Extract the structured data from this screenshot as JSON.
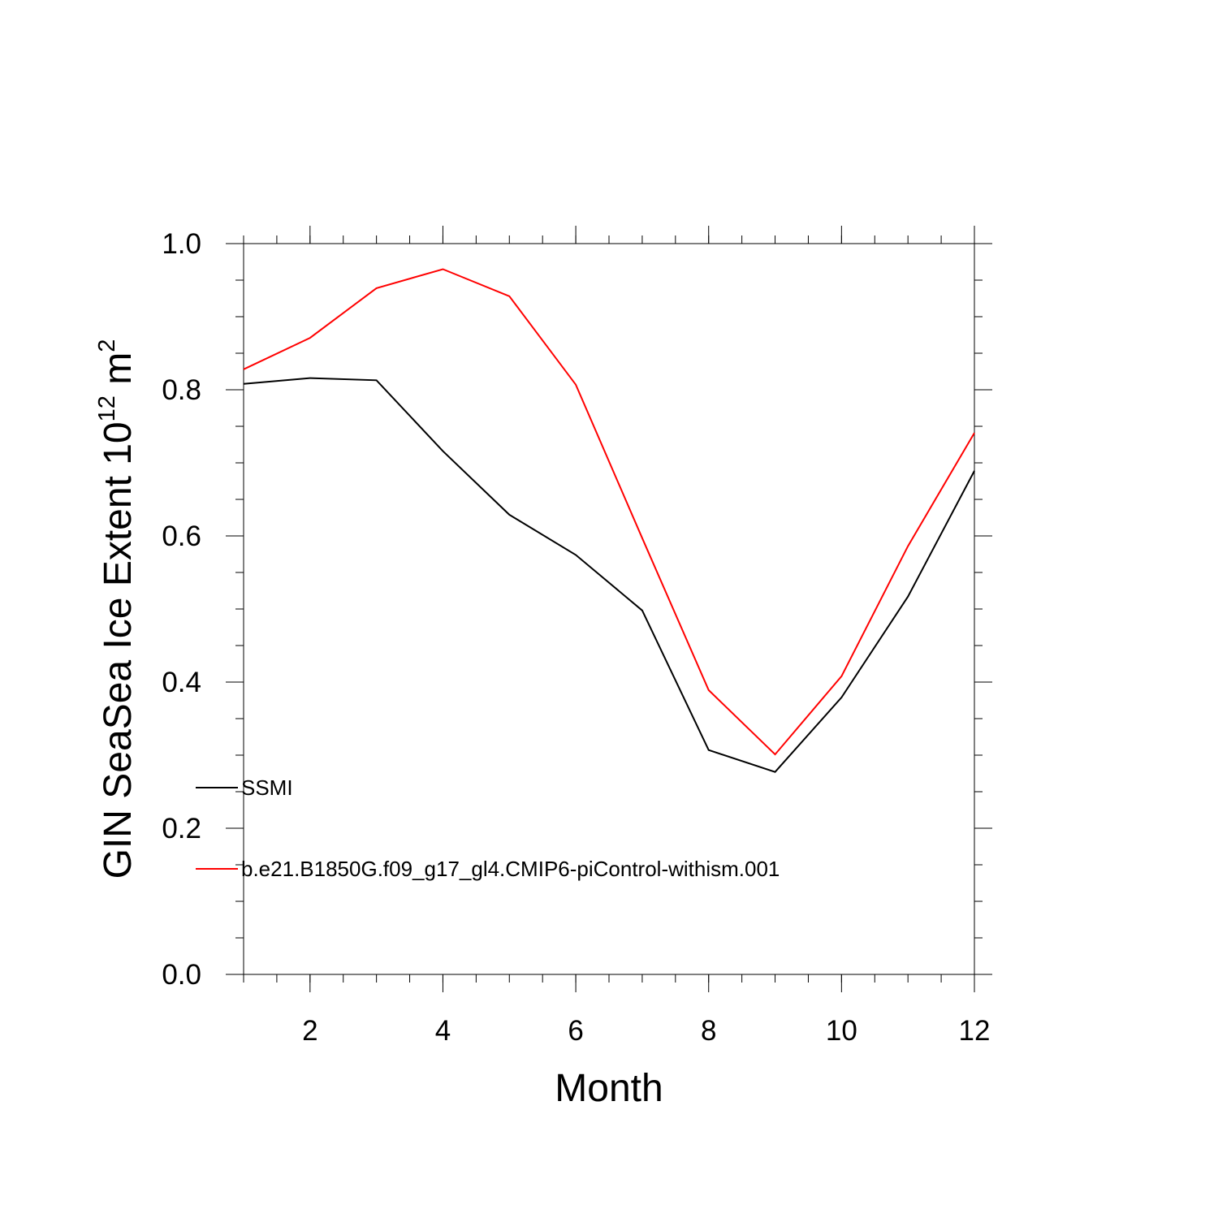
{
  "chart_data": {
    "type": "line",
    "title": "",
    "xlabel": "Month",
    "ylabel": "GIN SeaSea Ice Extent 10",
    "ylabel_exponent": "12",
    "ylabel_unit": " m",
    "ylabel_unit_exponent": "2",
    "xlim": [
      1,
      12
    ],
    "ylim": [
      0,
      1
    ],
    "x_ticks": [
      2,
      4,
      6,
      8,
      10,
      12
    ],
    "y_ticks": [
      0.0,
      0.2,
      0.4,
      0.6,
      0.8,
      1.0
    ],
    "y_tick_labels": [
      "0.0",
      "0.2",
      "0.4",
      "0.6",
      "0.8",
      "1.0"
    ],
    "x_tick_labels": [
      "2",
      "4",
      "6",
      "8",
      "10",
      "12"
    ],
    "grid": false,
    "legend_position": "lower-left",
    "x": [
      1,
      2,
      3,
      4,
      5,
      6,
      7,
      8,
      9,
      10,
      11,
      12
    ],
    "series": [
      {
        "name": "SSMI",
        "color": "#000000",
        "values": [
          0.808,
          0.816,
          0.813,
          0.716,
          0.629,
          0.574,
          0.498,
          0.307,
          0.277,
          0.379,
          0.517,
          0.689
        ]
      },
      {
        "name": "b.e21.B1850G.f09_g17_gl4.CMIP6-piControl-withism.001",
        "color": "#ff0000",
        "values": [
          0.828,
          0.871,
          0.939,
          0.965,
          0.928,
          0.807,
          0.597,
          0.389,
          0.301,
          0.408,
          0.586,
          0.741
        ]
      }
    ]
  }
}
